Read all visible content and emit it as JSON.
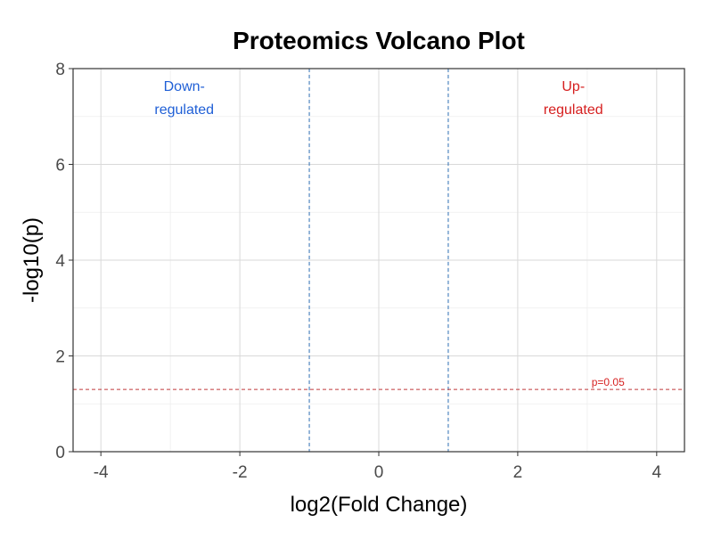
{
  "chart_data": {
    "type": "scatter",
    "title": "Proteomics Volcano Plot",
    "xlabel": "log2(Fold Change)",
    "ylabel": "-log10(p)",
    "xlim": [
      -4.4,
      4.4
    ],
    "ylim": [
      0,
      8
    ],
    "xticks": [
      -4,
      -2,
      0,
      2,
      4
    ],
    "yticks": [
      0,
      2,
      4,
      6,
      8
    ],
    "grid": true,
    "series": [],
    "thresholds": {
      "fold_change": [
        -1,
        1
      ],
      "p_value_line": 1.301,
      "p_value_label": "p=0.05"
    },
    "annotations": [
      {
        "text_line1": "Down-",
        "text_line2": "regulated",
        "x": -2.8,
        "y": 7.5
      },
      {
        "text_line1": "Up-",
        "text_line2": "regulated",
        "x": 2.8,
        "y": 7.5
      }
    ],
    "colors": {
      "down": "#1f5fd6",
      "up": "#d62020",
      "fc_line": "#2e6fb4",
      "p_line": "#c0393b",
      "grid_major": "#d9d9d9",
      "grid_minor": "#eeeeee",
      "panel_border": "#333333"
    }
  }
}
